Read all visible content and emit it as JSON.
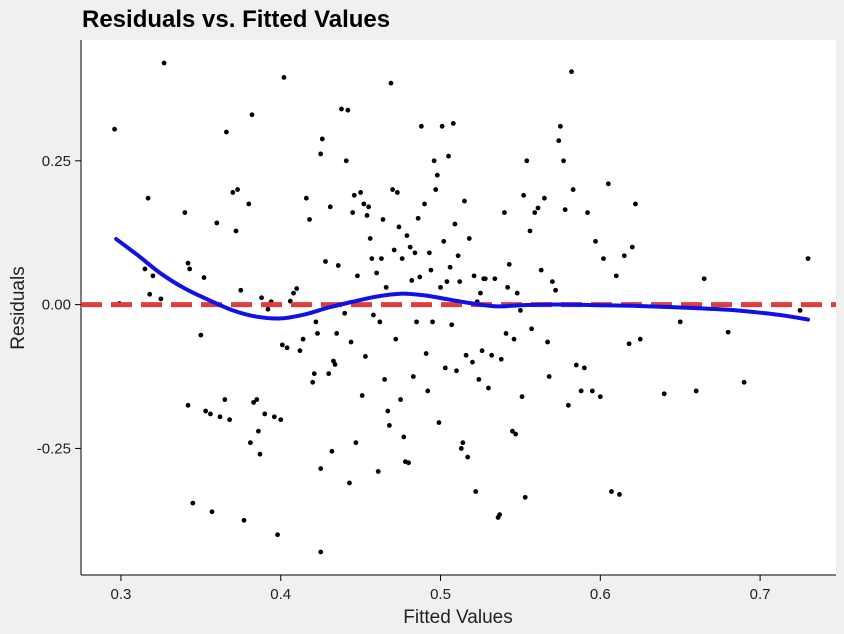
{
  "chart_data": {
    "type": "scatter",
    "title": "Residuals vs. Fitted Values",
    "xlabel": "Fitted Values",
    "ylabel": "Residuals",
    "xlim": [
      0.275,
      0.7475
    ],
    "ylim": [
      -0.47,
      0.46
    ],
    "xticks": [
      "0.3",
      "0.4",
      "0.5",
      "0.6",
      "0.7"
    ],
    "yticks": [
      "-0.25",
      "0.00",
      "0.25"
    ],
    "grid": false,
    "reference_line": {
      "y": 0.0,
      "style": "dashed",
      "color": "#e03c3c"
    },
    "colors": {
      "points": "#000000",
      "smooth": "#1010e8",
      "reference": "#e03c3c",
      "panel": "#ffffff",
      "background": "#f0f0f0"
    },
    "smooth_curve": {
      "x": [
        0.297,
        0.31,
        0.325,
        0.34,
        0.355,
        0.37,
        0.385,
        0.4,
        0.415,
        0.43,
        0.445,
        0.46,
        0.475,
        0.49,
        0.505,
        0.52,
        0.535,
        0.55,
        0.565,
        0.58,
        0.6,
        0.62,
        0.64,
        0.66,
        0.68,
        0.7,
        0.715,
        0.73
      ],
      "y": [
        0.114,
        0.087,
        0.054,
        0.028,
        0.008,
        -0.01,
        -0.021,
        -0.024,
        -0.017,
        -0.005,
        0.005,
        0.014,
        0.019,
        0.016,
        0.009,
        0.002,
        -0.003,
        -0.001,
        0.0,
        0.0,
        -0.001,
        -0.002,
        -0.004,
        -0.006,
        -0.009,
        -0.014,
        -0.019,
        -0.026
      ]
    },
    "series": [
      {
        "points": [
          [
            0.296,
            0.305
          ],
          [
            0.299,
            0.002
          ],
          [
            0.317,
            0.185
          ],
          [
            0.327,
            0.42
          ],
          [
            0.315,
            0.062
          ],
          [
            0.318,
            0.018
          ],
          [
            0.32,
            0.05
          ],
          [
            0.325,
            0.01
          ],
          [
            0.34,
            0.16
          ],
          [
            0.342,
            0.072
          ],
          [
            0.343,
            0.062
          ],
          [
            0.342,
            -0.175
          ],
          [
            0.345,
            -0.345
          ],
          [
            0.35,
            -0.053
          ],
          [
            0.352,
            0.047
          ],
          [
            0.353,
            -0.185
          ],
          [
            0.356,
            -0.19
          ],
          [
            0.357,
            -0.36
          ],
          [
            0.36,
            0.142
          ],
          [
            0.362,
            -0.195
          ],
          [
            0.365,
            -0.165
          ],
          [
            0.366,
            0.3
          ],
          [
            0.368,
            -0.2
          ],
          [
            0.37,
            0.195
          ],
          [
            0.372,
            0.128
          ],
          [
            0.373,
            0.2
          ],
          [
            0.375,
            0.025
          ],
          [
            0.377,
            -0.375
          ],
          [
            0.38,
            0.175
          ],
          [
            0.382,
            0.33
          ],
          [
            0.381,
            -0.24
          ],
          [
            0.383,
            -0.17
          ],
          [
            0.385,
            -0.165
          ],
          [
            0.386,
            -0.22
          ],
          [
            0.387,
            -0.26
          ],
          [
            0.388,
            0.012
          ],
          [
            0.39,
            -0.19
          ],
          [
            0.392,
            -0.008
          ],
          [
            0.394,
            0.005
          ],
          [
            0.396,
            -0.195
          ],
          [
            0.398,
            -0.4
          ],
          [
            0.4,
            -0.2
          ],
          [
            0.401,
            -0.07
          ],
          [
            0.402,
            0.395
          ],
          [
            0.404,
            -0.075
          ],
          [
            0.406,
            0.006
          ],
          [
            0.408,
            0.02
          ],
          [
            0.41,
            0.028
          ],
          [
            0.412,
            -0.08
          ],
          [
            0.414,
            -0.06
          ],
          [
            0.416,
            0.185
          ],
          [
            0.418,
            0.148
          ],
          [
            0.42,
            -0.135
          ],
          [
            0.421,
            -0.12
          ],
          [
            0.422,
            -0.03
          ],
          [
            0.423,
            -0.05
          ],
          [
            0.425,
            0.262
          ],
          [
            0.425,
            -0.43
          ],
          [
            0.426,
            0.288
          ],
          [
            0.425,
            -0.285
          ],
          [
            0.428,
            0.075
          ],
          [
            0.43,
            -0.12
          ],
          [
            0.431,
            0.17
          ],
          [
            0.432,
            -0.255
          ],
          [
            0.433,
            -0.098
          ],
          [
            0.434,
            -0.104
          ],
          [
            0.435,
            -0.05
          ],
          [
            0.436,
            0.068
          ],
          [
            0.438,
            0.34
          ],
          [
            0.44,
            -0.015
          ],
          [
            0.441,
            0.25
          ],
          [
            0.442,
            0.338
          ],
          [
            0.443,
            -0.31
          ],
          [
            0.444,
            -0.065
          ],
          [
            0.445,
            0.16
          ],
          [
            0.446,
            0.19
          ],
          [
            0.447,
            -0.24
          ],
          [
            0.448,
            0.05
          ],
          [
            0.45,
            0.195
          ],
          [
            0.451,
            -0.158
          ],
          [
            0.452,
            0.175
          ],
          [
            0.453,
            -0.09
          ],
          [
            0.454,
            0.155
          ],
          [
            0.455,
            0.17
          ],
          [
            0.456,
            0.115
          ],
          [
            0.457,
            0.08
          ],
          [
            0.458,
            -0.018
          ],
          [
            0.46,
            0.055
          ],
          [
            0.461,
            -0.29
          ],
          [
            0.462,
            -0.03
          ],
          [
            0.463,
            0.08
          ],
          [
            0.464,
            0.148
          ],
          [
            0.465,
            -0.13
          ],
          [
            0.466,
            0.03
          ],
          [
            0.467,
            -0.185
          ],
          [
            0.468,
            -0.21
          ],
          [
            0.469,
            0.385
          ],
          [
            0.47,
            0.2
          ],
          [
            0.471,
            0.095
          ],
          [
            0.472,
            -0.06
          ],
          [
            0.473,
            0.195
          ],
          [
            0.474,
            0.135
          ],
          [
            0.475,
            -0.165
          ],
          [
            0.476,
            0.08
          ],
          [
            0.477,
            -0.23
          ],
          [
            0.478,
            -0.273
          ],
          [
            0.479,
            0.12
          ],
          [
            0.48,
            -0.275
          ],
          [
            0.481,
            0.1
          ],
          [
            0.482,
            0.042
          ],
          [
            0.483,
            -0.125
          ],
          [
            0.484,
            0.09
          ],
          [
            0.485,
            -0.03
          ],
          [
            0.486,
            0.15
          ],
          [
            0.487,
            0.048
          ],
          [
            0.488,
            0.31
          ],
          [
            0.49,
            0.175
          ],
          [
            0.491,
            -0.085
          ],
          [
            0.492,
            -0.15
          ],
          [
            0.493,
            0.09
          ],
          [
            0.494,
            0.06
          ],
          [
            0.495,
            -0.03
          ],
          [
            0.496,
            0.25
          ],
          [
            0.497,
            0.2
          ],
          [
            0.498,
            0.225
          ],
          [
            0.499,
            -0.205
          ],
          [
            0.5,
            0.03
          ],
          [
            0.501,
            0.31
          ],
          [
            0.502,
            0.11
          ],
          [
            0.503,
            -0.11
          ],
          [
            0.504,
            0.04
          ],
          [
            0.505,
            0.258
          ],
          [
            0.506,
            0.065
          ],
          [
            0.507,
            -0.035
          ],
          [
            0.508,
            0.315
          ],
          [
            0.509,
            0.14
          ],
          [
            0.51,
            -0.115
          ],
          [
            0.511,
            0.085
          ],
          [
            0.512,
            0.04
          ],
          [
            0.513,
            -0.25
          ],
          [
            0.514,
            -0.24
          ],
          [
            0.515,
            0.18
          ],
          [
            0.516,
            -0.088
          ],
          [
            0.517,
            -0.265
          ],
          [
            0.518,
            0.115
          ],
          [
            0.52,
            -0.1
          ],
          [
            0.521,
            0.05
          ],
          [
            0.522,
            -0.325
          ],
          [
            0.523,
            0.005
          ],
          [
            0.524,
            -0.13
          ],
          [
            0.525,
            0.02
          ],
          [
            0.526,
            -0.08
          ],
          [
            0.527,
            0.045
          ],
          [
            0.528,
            0.045
          ],
          [
            0.53,
            -0.145
          ],
          [
            0.532,
            -0.088
          ],
          [
            0.534,
            0.045
          ],
          [
            0.536,
            -0.37
          ],
          [
            0.537,
            -0.365
          ],
          [
            0.538,
            -0.095
          ],
          [
            0.54,
            0.16
          ],
          [
            0.541,
            -0.05
          ],
          [
            0.542,
            0.03
          ],
          [
            0.543,
            0.07
          ],
          [
            0.545,
            -0.22
          ],
          [
            0.546,
            -0.06
          ],
          [
            0.547,
            -0.225
          ],
          [
            0.548,
            0.02
          ],
          [
            0.55,
            -0.01
          ],
          [
            0.551,
            -0.16
          ],
          [
            0.552,
            0.19
          ],
          [
            0.553,
            -0.335
          ],
          [
            0.554,
            0.25
          ],
          [
            0.556,
            0.128
          ],
          [
            0.557,
            -0.042
          ],
          [
            0.559,
            0.16
          ],
          [
            0.561,
            0.168
          ],
          [
            0.563,
            0.06
          ],
          [
            0.565,
            0.185
          ],
          [
            0.567,
            -0.065
          ],
          [
            0.568,
            -0.125
          ],
          [
            0.57,
            0.04
          ],
          [
            0.572,
            0.025
          ],
          [
            0.574,
            0.285
          ],
          [
            0.575,
            0.31
          ],
          [
            0.577,
            0.25
          ],
          [
            0.578,
            0.165
          ],
          [
            0.58,
            -0.175
          ],
          [
            0.582,
            0.405
          ],
          [
            0.583,
            0.2
          ],
          [
            0.585,
            -0.105
          ],
          [
            0.587,
            0.0
          ],
          [
            0.588,
            -0.15
          ],
          [
            0.59,
            -0.11
          ],
          [
            0.592,
            0.16
          ],
          [
            0.595,
            -0.15
          ],
          [
            0.597,
            0.11
          ],
          [
            0.6,
            -0.16
          ],
          [
            0.602,
            0.08
          ],
          [
            0.605,
            0.21
          ],
          [
            0.607,
            -0.325
          ],
          [
            0.61,
            0.05
          ],
          [
            0.612,
            -0.33
          ],
          [
            0.615,
            0.085
          ],
          [
            0.618,
            -0.068
          ],
          [
            0.62,
            0.1
          ],
          [
            0.622,
            0.175
          ],
          [
            0.625,
            -0.06
          ],
          [
            0.64,
            -0.155
          ],
          [
            0.65,
            -0.03
          ],
          [
            0.66,
            -0.15
          ],
          [
            0.665,
            0.045
          ],
          [
            0.68,
            -0.048
          ],
          [
            0.69,
            -0.135
          ],
          [
            0.725,
            -0.01
          ],
          [
            0.73,
            0.08
          ]
        ]
      }
    ]
  }
}
